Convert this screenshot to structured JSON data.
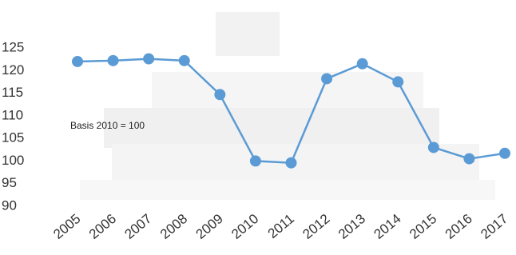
{
  "chart_data": {
    "type": "line",
    "annotation": "Basis 2010 = 100",
    "categories": [
      "2005",
      "2006",
      "2007",
      "2008",
      "2009",
      "2010",
      "2011",
      "2012",
      "2013",
      "2014",
      "2015",
      "2016",
      "2017"
    ],
    "series": [
      {
        "color": "#5b9bd5",
        "values": [
          122,
          122.2,
          122.6,
          122.2,
          114.7,
          100,
          99.6,
          118.2,
          121.5,
          117.5,
          103,
          100.5,
          101.7
        ]
      }
    ],
    "ylim": [
      90,
      125
    ],
    "yticks": [
      90,
      95,
      100,
      105,
      110,
      115,
      120,
      125
    ],
    "grid": false
  }
}
